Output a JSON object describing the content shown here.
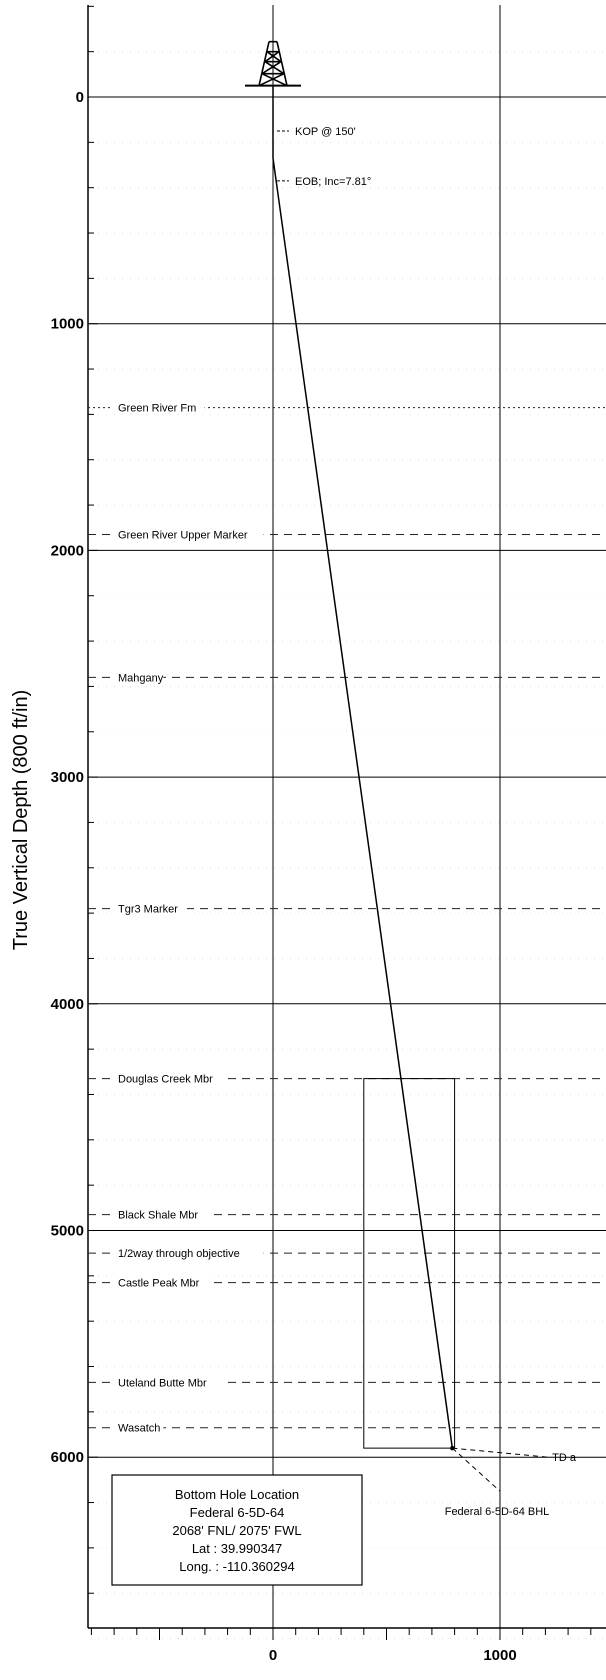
{
  "chart_data": {
    "type": "line",
    "ylabel": "True Vertical Depth (800 ft/in)",
    "xlabel": "",
    "xlim": [
      -800,
      1400
    ],
    "ylim": [
      -400,
      6900
    ],
    "y_inverted": true,
    "y_ticks": [
      0,
      1000,
      2000,
      3000,
      4000,
      5000,
      6000
    ],
    "x_ticks": [
      0,
      1000
    ],
    "grid": true,
    "well_path": [
      {
        "x": 0,
        "y": -50
      },
      {
        "x": 0,
        "y": 150
      },
      {
        "x": 0,
        "y": 270
      },
      {
        "x": 790,
        "y": 5960
      }
    ],
    "formation_markers": [
      {
        "label": "Green River Fm",
        "depth": 1370,
        "style": "dotted"
      },
      {
        "label": "Green River Upper Marker",
        "depth": 1930,
        "style": "dashed"
      },
      {
        "label": "Mahgany",
        "depth": 2560,
        "style": "dashed"
      },
      {
        "label": "Tgr3 Marker",
        "depth": 3580,
        "style": "dashed"
      },
      {
        "label": "Douglas Creek Mbr",
        "depth": 4330,
        "style": "dashed"
      },
      {
        "label": "Black Shale Mbr",
        "depth": 4930,
        "style": "dashed"
      },
      {
        "label": "1/2way through objective",
        "depth": 5100,
        "style": "dashed"
      },
      {
        "label": "Castle Peak Mbr",
        "depth": 5230,
        "style": "dashed"
      },
      {
        "label": "Uteland Butte Mbr",
        "depth": 5670,
        "style": "dashed"
      },
      {
        "label": "Wasatch",
        "depth": 5870,
        "style": "dashed"
      }
    ],
    "annotations": [
      {
        "label": "KOP @ 150'",
        "x": 0,
        "y": 150
      },
      {
        "label": "EOB; Inc=7.81°",
        "x": 0,
        "y": 370
      }
    ],
    "target_box": {
      "x_min": 400,
      "x_max": 800,
      "y_min": 4330,
      "y_max": 5960
    },
    "td_label": "TD a",
    "td_point": {
      "x": 1300,
      "y": 6000
    },
    "bhl_label": "Federal 6-5D-64 BHL",
    "bhl_point": {
      "x": 1000,
      "y": 6150
    }
  },
  "bhl_box": {
    "lines": [
      "Bottom Hole Location",
      "Federal 6-5D-64",
      "2068' FNL/ 2075' FWL",
      "Lat :  39.990347",
      "Long. : -110.360294"
    ]
  }
}
